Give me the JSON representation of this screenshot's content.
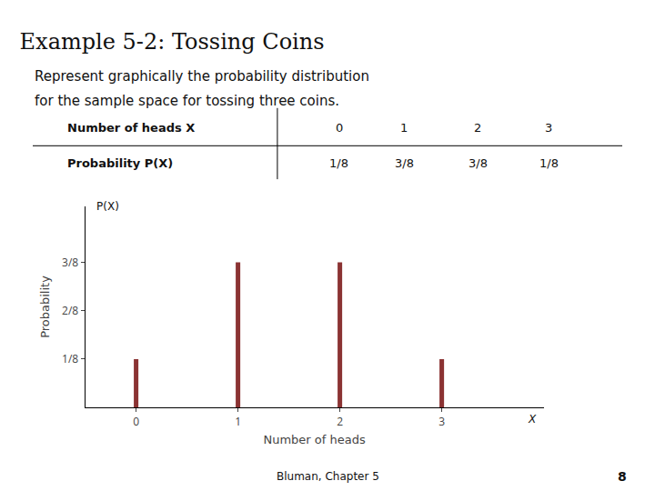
{
  "chart_data": {
    "type": "stem",
    "title": "Example 5-2: Tossing Coins",
    "subtitle": [
      "Represent graphically the probability distribution",
      "for the sample space for tossing three coins."
    ],
    "table": [
      {
        "label": "Number of heads X",
        "cells": [
          "0",
          "1",
          "2",
          "3"
        ]
      },
      {
        "label": "Probability P(X)",
        "cells": [
          "1/8",
          "3/8",
          "3/8",
          "1/8"
        ]
      }
    ],
    "x": [
      0,
      1,
      2,
      3
    ],
    "values": [
      0.125,
      0.375,
      0.375,
      0.125
    ],
    "color": "#8b3333",
    "xlabel": "Number of heads",
    "ylabel": "Probability",
    "axis_symbols": {
      "x": "X",
      "y": "P(X)"
    },
    "xlim": [
      -0.5,
      4.0
    ],
    "ylim": [
      0,
      0.52
    ],
    "xticks": [
      0,
      1,
      2,
      3
    ],
    "yticks": [
      {
        "value": 0.125,
        "label": "1/8"
      },
      {
        "value": 0.25,
        "label": "2/8"
      },
      {
        "value": 0.375,
        "label": "3/8"
      }
    ],
    "grid": false,
    "footer": "Bluman, Chapter 5",
    "page": "8"
  }
}
